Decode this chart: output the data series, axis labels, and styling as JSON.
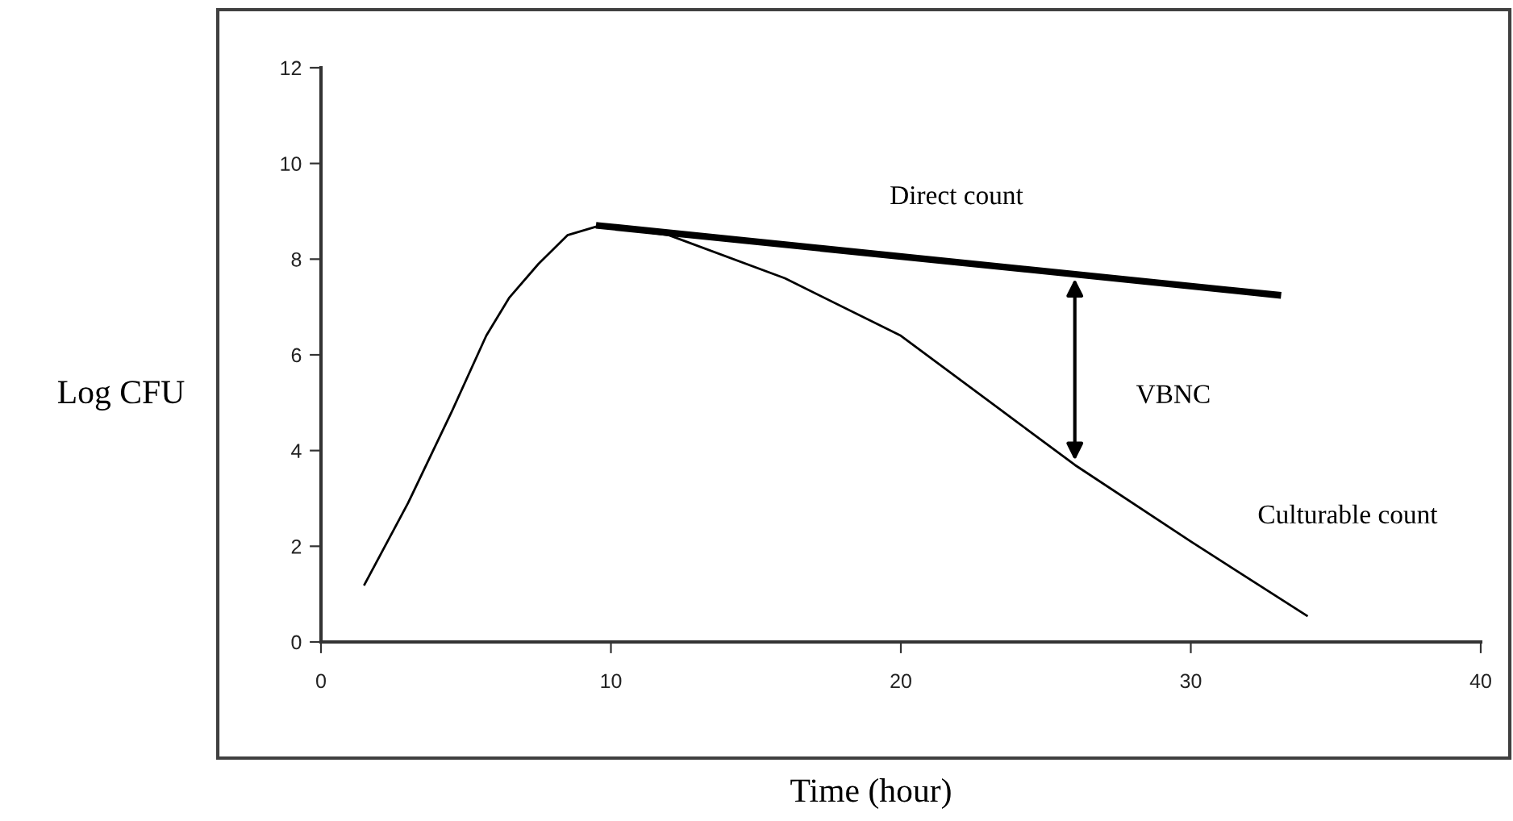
{
  "chart_data": {
    "type": "line",
    "xlabel": "Time (hour)",
    "ylabel": "Log CFU",
    "xlim": [
      0,
      40
    ],
    "ylim": [
      0,
      12
    ],
    "xticks": [
      0,
      10,
      20,
      30,
      40
    ],
    "yticks": [
      0,
      2,
      4,
      6,
      8,
      10,
      12
    ],
    "grid": false,
    "legend": false,
    "marker": "none",
    "series": [
      {
        "name": "Direct count",
        "color": "#000000",
        "x": [
          9.6,
          33
        ],
        "values": [
          8.7,
          7.25
        ]
      },
      {
        "name": "Culturable count",
        "color": "#000000",
        "x": [
          1.5,
          3,
          4.5,
          5.7,
          6.5,
          7.5,
          8.5,
          9.6,
          12,
          16,
          20,
          24,
          26,
          30,
          34
        ],
        "values": [
          1.2,
          2.9,
          4.8,
          6.4,
          7.2,
          7.9,
          8.5,
          8.7,
          8.5,
          7.6,
          6.4,
          4.6,
          3.7,
          2.1,
          0.55
        ]
      }
    ],
    "annotations": [
      "VBNC"
    ]
  }
}
